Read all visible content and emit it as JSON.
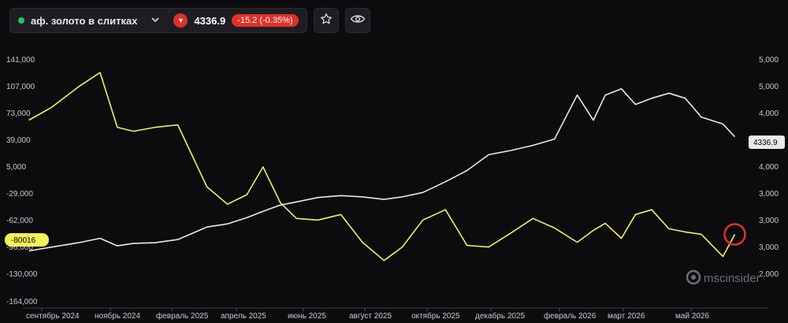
{
  "toolbar": {
    "instrument": "аф. золото в слитках",
    "price": "4336.9",
    "change": "-15.2 (-0.35%)",
    "status_color": "#22c55e",
    "down_color": "#e0302a",
    "icons": [
      "chevron-down-icon",
      "down-arrow-icon",
      "star-icon",
      "eye-icon"
    ]
  },
  "watermark": {
    "brand": "mscinsider"
  },
  "chart_data": {
    "type": "line",
    "title": "",
    "x": [
      "2024-08-20",
      "2024-09-10",
      "2024-10-05",
      "2024-10-25",
      "2024-11-10",
      "2024-11-25",
      "2024-12-15",
      "2025-01-05",
      "2025-02-01",
      "2025-02-20",
      "2025-03-10",
      "2025-03-25",
      "2025-04-10",
      "2025-04-25",
      "2025-05-15",
      "2025-06-05",
      "2025-06-25",
      "2025-07-15",
      "2025-08-01",
      "2025-08-20",
      "2025-09-10",
      "2025-09-30",
      "2025-10-20",
      "2025-11-10",
      "2025-11-30",
      "2025-12-20",
      "2026-01-10",
      "2026-01-25",
      "2026-02-05",
      "2026-02-20",
      "2026-03-05",
      "2026-03-20",
      "2026-04-05",
      "2026-04-20",
      "2026-05-05",
      "2026-05-25",
      "2026-06-05"
    ],
    "series": [
      {
        "axis": "left",
        "color": "#f2f25a",
        "values": [
          64000,
          80000,
          106000,
          124000,
          55000,
          50000,
          55000,
          58000,
          -20000,
          -42000,
          -30000,
          5000,
          -40000,
          -60000,
          -62000,
          -55000,
          -90000,
          -113000,
          -96000,
          -62000,
          -49000,
          -94000,
          -96000,
          -78000,
          -60000,
          -72000,
          -90000,
          -75000,
          -66000,
          -85000,
          -55000,
          -49000,
          -73000,
          -77000,
          -80000,
          -108000,
          -80016
        ]
      },
      {
        "axis": "right",
        "color": "#e9e9ec",
        "values": [
          2520,
          2580,
          2650,
          2720,
          2600,
          2640,
          2650,
          2700,
          2900,
          2950,
          3050,
          3150,
          3250,
          3300,
          3370,
          3400,
          3380,
          3340,
          3380,
          3450,
          3620,
          3800,
          4050,
          4120,
          4200,
          4300,
          5000,
          4600,
          5000,
          5100,
          4850,
          4950,
          5030,
          4950,
          4650,
          4540,
          4336.9
        ]
      }
    ],
    "y_left": {
      "ticks": [
        "141,000",
        "107,000",
        "73,000",
        "39,000",
        "5,000",
        "-29,000",
        "-62,000",
        "-96,000",
        "-130,000",
        "-164,000"
      ],
      "last_value_label": "-80016"
    },
    "y_right": {
      "ticks": [
        "5,000",
        "5,000",
        "4,000",
        "4,000",
        "4,000",
        "3,000",
        "3,000",
        "3,000",
        "2,000"
      ],
      "last_value_label": "4336.9"
    },
    "x_ticks": [
      "сентябрь 2024",
      "ноябрь 2024",
      "февраль 2025",
      "апрель 2025",
      "июнь 2025",
      "август 2025",
      "октябрь 2025",
      "декабрь 2025",
      "февраль 2026",
      "март 2026",
      "май 2026"
    ],
    "grid": false,
    "legend": "none",
    "annotation": "red-circle-marker-on-last-value"
  }
}
